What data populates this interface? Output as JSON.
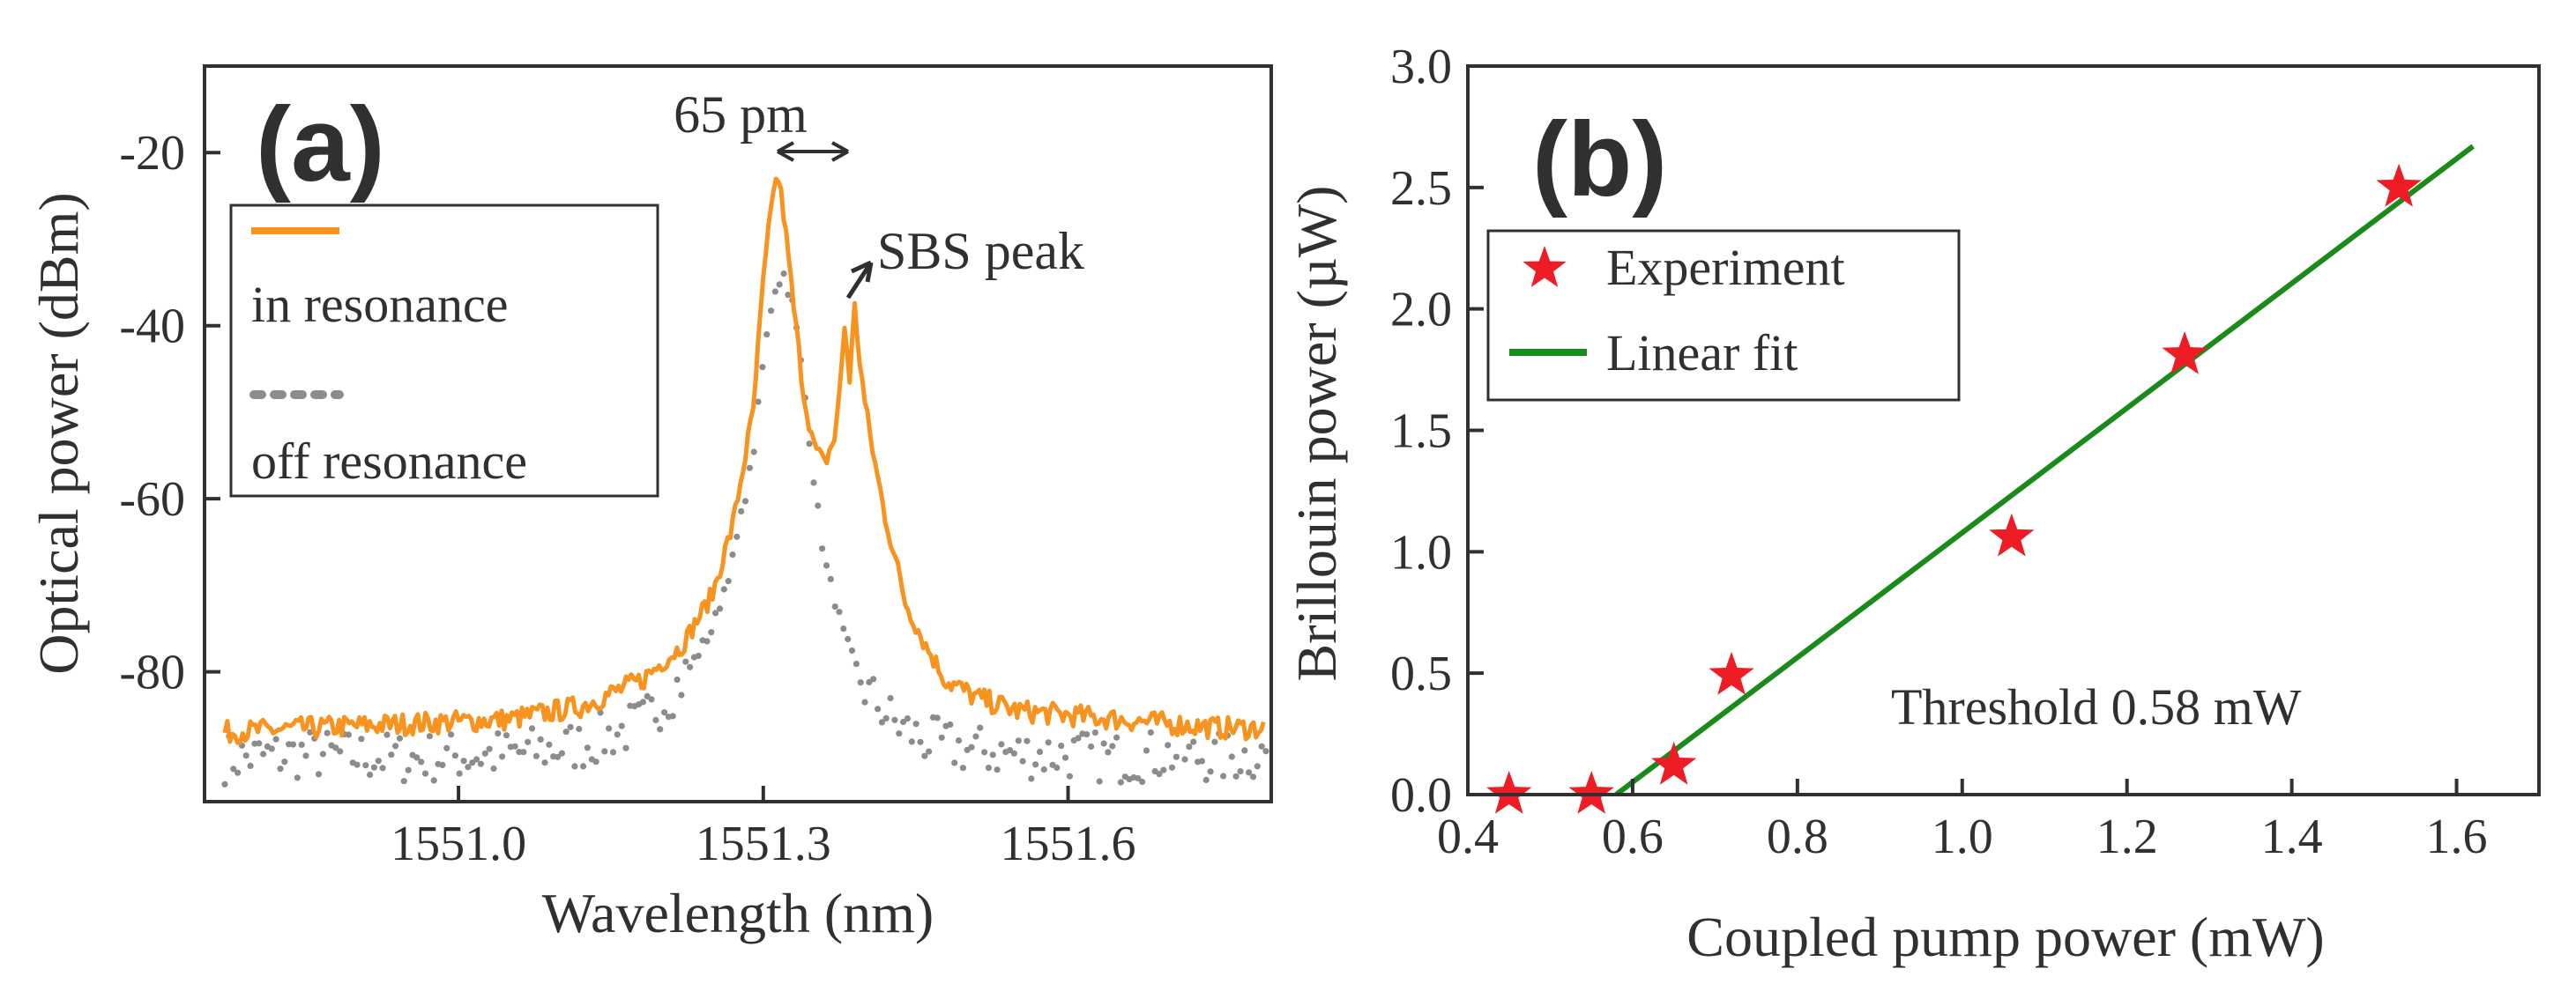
{
  "colors": {
    "in_resonance": "#f7931e",
    "off_resonance": "#8c8c8c",
    "experiment": "#ee1c24",
    "fit": "#1a8a1a",
    "axis": "#303030"
  },
  "chart_data": [
    {
      "panel": "(a)",
      "type": "line",
      "xlabel": "Wavelength (nm)",
      "ylabel": "Optical power (dBm)",
      "xlim": [
        1550.75,
        1551.8
      ],
      "ylim": [
        -95,
        -10
      ],
      "xticks": [
        1551.0,
        1551.3,
        1551.6
      ],
      "xtick_labels": [
        "1551.0",
        "1551.3",
        "1551.6"
      ],
      "yticks": [
        -20,
        -40,
        -60,
        -80
      ],
      "ytick_labels": [
        "-20",
        "-40",
        "-60",
        "-80"
      ],
      "annotations": {
        "linewidth": "65 pm",
        "sbs_peak": "SBS peak"
      },
      "legend": {
        "placement": "top-left"
      },
      "series": [
        {
          "name": "in resonance",
          "style": "solid",
          "x": [
            1550.77,
            1550.85,
            1550.95,
            1551.05,
            1551.12,
            1551.18,
            1551.22,
            1551.25,
            1551.27,
            1551.29,
            1551.3,
            1551.31,
            1551.315,
            1551.32,
            1551.33,
            1551.34,
            1551.35,
            1551.36,
            1551.37,
            1551.375,
            1551.38,
            1551.385,
            1551.39,
            1551.395,
            1551.4,
            1551.41,
            1551.42,
            1551.43,
            1551.44,
            1551.46,
            1551.48,
            1551.51,
            1551.55,
            1551.6,
            1551.65,
            1551.7,
            1551.75,
            1551.79
          ],
          "y": [
            -87,
            -86.5,
            -86,
            -85.5,
            -84,
            -81,
            -77,
            -71,
            -63,
            -50,
            -35,
            -24,
            -23,
            -27,
            -38,
            -48,
            -54,
            -56,
            -53,
            -48,
            -40,
            -46,
            -38,
            -44,
            -49,
            -56,
            -62,
            -67,
            -72,
            -77,
            -81,
            -83,
            -84.5,
            -85,
            -85.5,
            -86,
            -86.5,
            -86.5
          ]
        },
        {
          "name": "off resonance",
          "style": "dotted",
          "x": [
            1550.77,
            1550.85,
            1550.95,
            1551.05,
            1551.12,
            1551.18,
            1551.22,
            1551.25,
            1551.27,
            1551.29,
            1551.3,
            1551.31,
            1551.32,
            1551.33,
            1551.34,
            1551.35,
            1551.36,
            1551.38,
            1551.4,
            1551.43,
            1551.46,
            1551.5,
            1551.55,
            1551.6,
            1551.65,
            1551.7,
            1551.75,
            1551.79
          ],
          "y": [
            -90,
            -89.5,
            -90,
            -89.5,
            -88.5,
            -86,
            -81,
            -75,
            -67,
            -55,
            -44,
            -36,
            -34,
            -38,
            -47,
            -58,
            -67,
            -76,
            -82,
            -86,
            -88,
            -89,
            -89.5,
            -89.5,
            -90,
            -89.5,
            -90,
            -89.5
          ]
        }
      ]
    },
    {
      "panel": "(b)",
      "type": "scatter",
      "xlabel": "Coupled pump power (mW)",
      "ylabel": "Brillouin power (µW)",
      "xlim": [
        0.4,
        1.7
      ],
      "ylim": [
        0.0,
        3.0
      ],
      "xticks": [
        0.4,
        0.6,
        0.8,
        1.0,
        1.2,
        1.4,
        1.6
      ],
      "xtick_labels": [
        "0.4",
        "0.6",
        "0.8",
        "1.0",
        "1.2",
        "1.4",
        "1.6"
      ],
      "yticks": [
        0.0,
        0.5,
        1.0,
        1.5,
        2.0,
        2.5,
        3.0
      ],
      "ytick_labels": [
        "0.0",
        "0.5",
        "1.0",
        "1.5",
        "2.0",
        "2.5",
        "3.0"
      ],
      "annotation": "Threshold 0.58 mW",
      "legend": {
        "placement": "top-left"
      },
      "series": [
        {
          "name": "Experiment",
          "style": "star",
          "x": [
            0.45,
            0.55,
            0.65,
            0.72,
            1.06,
            1.27,
            1.53
          ],
          "y": [
            0.0,
            0.0,
            0.12,
            0.49,
            1.06,
            1.81,
            2.5
          ]
        },
        {
          "name": "Linear fit",
          "style": "line",
          "x": [
            0.58,
            1.62
          ],
          "y": [
            0.0,
            2.67
          ]
        }
      ]
    }
  ]
}
